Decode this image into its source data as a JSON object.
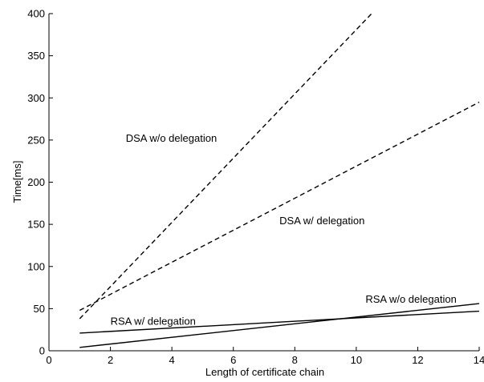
{
  "chart_data": {
    "type": "line",
    "title": "",
    "xlabel": "Length of certificate chain",
    "ylabel": "Time[ms]",
    "xlim": [
      0,
      14
    ],
    "ylim": [
      0,
      400
    ],
    "xticks": [
      "0",
      "2",
      "4",
      "6",
      "8",
      "10",
      "12",
      "14"
    ],
    "yticks": [
      "0",
      "50",
      "100",
      "150",
      "200",
      "250",
      "300",
      "350",
      "400"
    ],
    "grid": false,
    "legend": "none",
    "series": [
      {
        "name": "DSA w/o delegation",
        "style": "dashed",
        "color": "#000000",
        "x": [
          1,
          10.5
        ],
        "y": [
          38,
          400
        ]
      },
      {
        "name": "DSA w/ delegation",
        "style": "dashed",
        "color": "#000000",
        "x": [
          1,
          14
        ],
        "y": [
          48,
          295
        ]
      },
      {
        "name": "RSA w/o delegation",
        "style": "solid",
        "color": "#000000",
        "x": [
          1,
          14
        ],
        "y": [
          4,
          56
        ]
      },
      {
        "name": "RSA w/ delegation",
        "style": "solid",
        "color": "#000000",
        "x": [
          1,
          14
        ],
        "y": [
          21,
          47
        ]
      }
    ],
    "annotations": [
      {
        "text": "DSA w/o delegation",
        "x": 2.5,
        "y": 248
      },
      {
        "text": "DSA w/ delegation",
        "x": 7.5,
        "y": 150
      },
      {
        "text": "RSA w/o delegation",
        "x": 10.3,
        "y": 57
      },
      {
        "text": "RSA w/ delegation",
        "x": 2.0,
        "y": 31
      }
    ]
  }
}
